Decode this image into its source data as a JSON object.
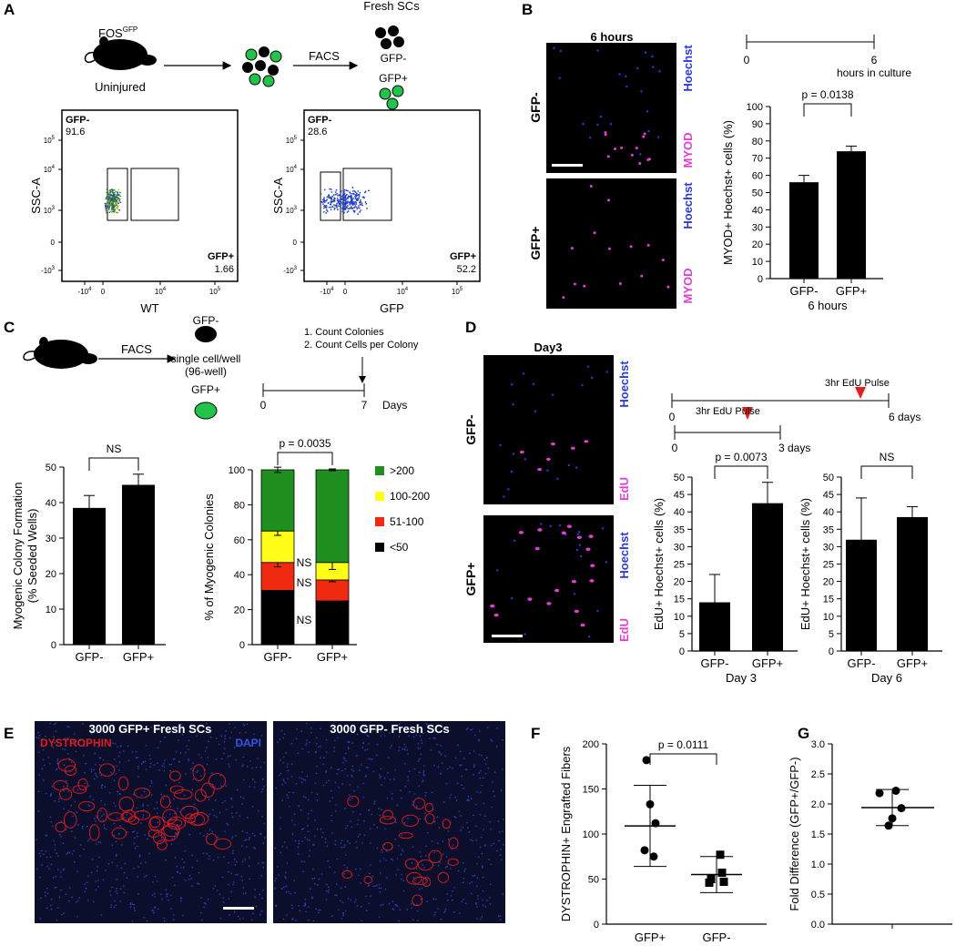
{
  "panels": {
    "A": {
      "letter": "A",
      "mouse_label": "FOS",
      "mouse_sup": "GFP",
      "mouse_state": "Uninjured",
      "facs": "FACS",
      "fresh_scs": "Fresh SCs",
      "gfp_minus": "GFP-",
      "gfp_plus": "GFP+",
      "flow": [
        {
          "ylabel": "SSC-A",
          "xlabel": "WT",
          "gate_neg": "GFP-",
          "val_neg": "91.6",
          "gate_pos": "GFP+",
          "val_pos": "1.66"
        },
        {
          "ylabel": "SSC-A",
          "xlabel": "GFP",
          "gate_neg": "GFP-",
          "val_neg": "28.6",
          "gate_pos": "GFP+",
          "val_pos": "52.2"
        }
      ],
      "yticks": [
        "10^5",
        "10^4",
        "10^3",
        "0",
        "-10^3"
      ],
      "xticks": [
        "-10^4",
        "0",
        "10^4",
        "10^5"
      ]
    },
    "B": {
      "letter": "B",
      "img_title": "6 hours",
      "row_labels": [
        "GFP-",
        "GFP+"
      ],
      "stain1": "Hoechst",
      "stain2": "MYOD",
      "timeline_start": "0",
      "timeline_end": "6",
      "timeline_label": "hours in culture"
    },
    "C": {
      "letter": "C",
      "facs": "FACS",
      "gfp_minus": "GFP-",
      "gfp_plus": "GFP+",
      "seed": [
        "single cell/well",
        "(96-well)"
      ],
      "steps": [
        "1. Count Colonies",
        "2. Count Cells per Colony"
      ],
      "timeline_start": "0",
      "timeline_end": "7",
      "timeline_unit": "Days"
    },
    "D": {
      "letter": "D",
      "img_title": "Day3",
      "row_labels": [
        "GFP-",
        "GFP+"
      ],
      "stain1": "Hoechst",
      "stain2": "EdU",
      "pulse_label": "3hr EdU Pulse",
      "tl1_start": "0",
      "tl1_end": "6 days",
      "tl2_start": "0",
      "tl2_end": "3 days"
    },
    "E": {
      "letter": "E",
      "left_title": "3000 GFP+ Fresh SCs",
      "right_title": "3000 GFP- Fresh SCs",
      "stain_red": "DYSTROPHIN",
      "stain_blue": "DAPI"
    },
    "F": {
      "letter": "F"
    },
    "G": {
      "letter": "G"
    }
  },
  "colors": {
    "bar": "#000000",
    "gfp_green": "#22c34a",
    "hoechst_blue": "#2a3bd8",
    "myod_magenta": "#e23fd2",
    "dystrophin_red": "#e01c1c",
    "dapi_blue": "#3454e8",
    "pulse_red": "#e0201c",
    "col_gt200": "#1f8f1f",
    "col_100_200": "#ffff1a",
    "col_51_100": "#ef2a10",
    "col_lt50": "#000000"
  },
  "chart_data": [
    {
      "id": "B_bar",
      "type": "bar",
      "categories": [
        "GFP-",
        "GFP+"
      ],
      "values": [
        56,
        74
      ],
      "errors": [
        4,
        3
      ],
      "ylabel": "MYOD+ Hoechst+ cells (%)",
      "xlabel": "6 hours",
      "ylim": [
        0,
        100
      ],
      "yticks": [
        0,
        10,
        20,
        30,
        40,
        50,
        60,
        70,
        80,
        90,
        100
      ],
      "annotation": "p = 0.0138"
    },
    {
      "id": "C_bar",
      "type": "bar",
      "categories": [
        "GFP-",
        "GFP+"
      ],
      "values": [
        38.5,
        45
      ],
      "errors": [
        3.5,
        3
      ],
      "ylabel": "Myogenic Colony Formation",
      "ylabel2": "(% Seeded Wells)",
      "ylim": [
        0,
        50
      ],
      "yticks": [
        0,
        10,
        20,
        30,
        40,
        50
      ],
      "annotation": "NS"
    },
    {
      "id": "C_stacked",
      "type": "bar",
      "categories": [
        "GFP-",
        "GFP+"
      ],
      "series": [
        {
          "name": "<50",
          "values": [
            31,
            25
          ],
          "errors": [
            8,
            1.5
          ]
        },
        {
          "name": "51-100",
          "values": [
            16,
            12
          ],
          "errors": [
            2.5,
            1
          ]
        },
        {
          "name": "100-200",
          "values": [
            18,
            10
          ],
          "errors": [
            2.5,
            4
          ]
        },
        {
          "name": ">200",
          "values": [
            35,
            53
          ],
          "errors": [
            1.5,
            0.5
          ]
        }
      ],
      "ylabel": "% of Myogenic Colonies",
      "ylim": [
        0,
        100
      ],
      "yticks": [
        0,
        20,
        40,
        60,
        80,
        100
      ],
      "annotation": "p = 0.0035",
      "ns_labels": [
        "NS",
        "NS",
        "NS"
      ]
    },
    {
      "id": "D_day3",
      "type": "bar",
      "categories": [
        "GFP-",
        "GFP+"
      ],
      "values": [
        14,
        42.5
      ],
      "errors": [
        8,
        6
      ],
      "ylabel": "EdU+ Hoechst+ cells (%)",
      "xlabel": "Day 3",
      "ylim": [
        0,
        50
      ],
      "yticks": [
        0,
        5,
        10,
        15,
        20,
        25,
        30,
        35,
        40,
        45,
        50
      ],
      "annotation": "p = 0.0073"
    },
    {
      "id": "D_day6",
      "type": "bar",
      "categories": [
        "GFP-",
        "GFP+"
      ],
      "values": [
        32,
        38.5
      ],
      "errors": [
        12,
        3
      ],
      "ylabel": "EdU+ Hoechst+ cells (%)",
      "xlabel": "Day 6",
      "ylim": [
        0,
        50
      ],
      "yticks": [
        0,
        5,
        10,
        15,
        20,
        25,
        30,
        35,
        40,
        45,
        50
      ],
      "annotation": "NS"
    },
    {
      "id": "F_scatter",
      "type": "scatter",
      "categories": [
        "GFP+",
        "GFP-"
      ],
      "points": [
        [
          182,
          133,
          112,
          82,
          75
        ],
        [
          77,
          57,
          50,
          47,
          46
        ]
      ],
      "mean": [
        109,
        55
      ],
      "sd": [
        45,
        20
      ],
      "ylabel": "DYSTROPHIN+ Engrafted Fibers",
      "ylim": [
        0,
        200
      ],
      "yticks": [
        0,
        50,
        100,
        150,
        200
      ],
      "annotation": "p = 0.0111"
    },
    {
      "id": "G_scatter",
      "type": "scatter",
      "points": [
        2.22,
        2.18,
        1.93,
        1.76,
        1.64
      ],
      "mean": 1.94,
      "sd": 0.3,
      "ylabel": "Fold Difference (GFP+/GFP-)",
      "ylim": [
        0,
        3.0
      ],
      "yticks": [
        "0.0",
        "0.5",
        "1.0",
        "1.5",
        "2.0",
        "2.5",
        "3.0"
      ]
    }
  ]
}
